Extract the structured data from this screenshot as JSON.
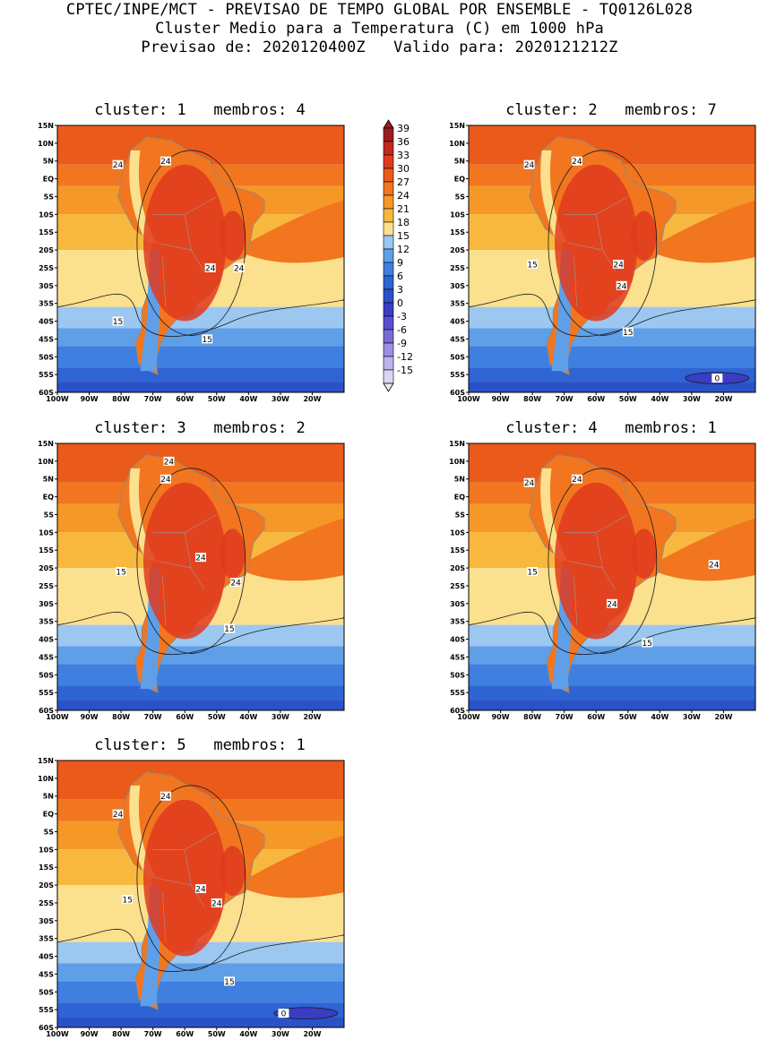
{
  "header": {
    "line1": "CPTEC/INPE/MCT - PREVISAO DE TEMPO GLOBAL POR ENSEMBLE - TQ0126L028",
    "line2": "Cluster Medio para a Temperatura (C) em 1000 hPa",
    "line3": "Previsao de: 2020120400Z   Valido para: 2020121212Z"
  },
  "lat_ticks": [
    "15N",
    "10N",
    "5N",
    "EQ",
    "5S",
    "10S",
    "15S",
    "20S",
    "25S",
    "30S",
    "35S",
    "40S",
    "45S",
    "50S",
    "55S",
    "60S"
  ],
  "lon_ticks": [
    "100W",
    "90W",
    "80W",
    "70W",
    "60W",
    "50W",
    "40W",
    "30W",
    "20W"
  ],
  "colorbar": {
    "levels": [
      "39",
      "36",
      "33",
      "30",
      "27",
      "24",
      "21",
      "18",
      "15",
      "12",
      "9",
      "6",
      "3",
      "0",
      "-3",
      "-6",
      "-9",
      "-12",
      "-15"
    ],
    "colors": [
      "#9b1c1c",
      "#c4281e",
      "#e0391f",
      "#ea5a1a",
      "#f1761f",
      "#f59828",
      "#f8b83e",
      "#fbe08e",
      "#9cc7f0",
      "#5f9fe8",
      "#3f7fdf",
      "#2e64d3",
      "#2a52c8",
      "#3b3cc4",
      "#5a4ed0",
      "#7a6ad8",
      "#9c8ee2",
      "#bcb2ec",
      "#dcd6f5"
    ]
  },
  "chart_data": {
    "type": "heatmap",
    "variable": "Temperatura (C) em 1000 hPa",
    "contour_levels_labeled": [
      0,
      15,
      24
    ],
    "panels": [
      {
        "cluster": "1",
        "membros": "4",
        "title": "cluster: 1   membros: 4",
        "contour_labels": [
          "24",
          "24",
          "24",
          "24",
          "15",
          "15"
        ]
      },
      {
        "cluster": "2",
        "membros": "7",
        "title": "cluster: 2   membros: 7",
        "contour_labels": [
          "24",
          "24",
          "24",
          "24",
          "15",
          "15",
          "0"
        ]
      },
      {
        "cluster": "3",
        "membros": "2",
        "title": "cluster: 3   membros: 2",
        "contour_labels": [
          "24",
          "24",
          "24",
          "24",
          "15",
          "15"
        ]
      },
      {
        "cluster": "4",
        "membros": "1",
        "title": "cluster: 4   membros: 1",
        "contour_labels": [
          "24",
          "24",
          "24",
          "24",
          "15",
          "15"
        ]
      },
      {
        "cluster": "5",
        "membros": "1",
        "title": "cluster: 5   membros: 1",
        "contour_labels": [
          "24",
          "24",
          "24",
          "24",
          "15",
          "15",
          "0"
        ]
      }
    ]
  }
}
